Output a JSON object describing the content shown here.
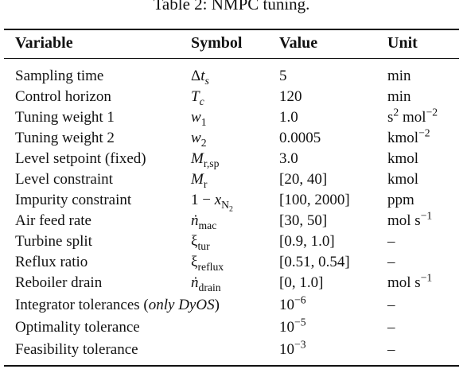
{
  "caption": "Table 2: NMPC tuning.",
  "headers": {
    "variable": "Variable",
    "symbol": "Symbol",
    "value": "Value",
    "unit": "Unit"
  },
  "rows": [
    {
      "variable": "Sampling time",
      "symbol": "Δt_s",
      "value": "5",
      "unit": "min"
    },
    {
      "variable": "Control horizon",
      "symbol": "T_c",
      "value": "120",
      "unit": "min"
    },
    {
      "variable": "Tuning weight 1",
      "symbol": "w_1",
      "value": "1.0",
      "unit": "s^2 mol^-2"
    },
    {
      "variable": "Tuning weight 2",
      "symbol": "w_2",
      "value": "0.0005",
      "unit": "kmol^-2"
    },
    {
      "variable": "Level setpoint (fixed)",
      "symbol": "M_r,sp",
      "value": "3.0",
      "unit": "kmol"
    },
    {
      "variable": "Level constraint",
      "symbol": "M_r",
      "value": "[20, 40]",
      "unit": "kmol"
    },
    {
      "variable": "Impurity constraint",
      "symbol": "1 − x_N2",
      "value": "[100, 2000]",
      "unit": "ppm"
    },
    {
      "variable": "Air feed rate",
      "symbol": "ṅ_mac",
      "value": "[30, 50]",
      "unit": "mol s^-1"
    },
    {
      "variable": "Turbine split",
      "symbol": "ξ_tur",
      "value": "[0.9, 1.0]",
      "unit": "–"
    },
    {
      "variable": "Reflux ratio",
      "symbol": "ξ_reflux",
      "value": "[0.51, 0.54]",
      "unit": "–"
    },
    {
      "variable": "Reboiler drain",
      "symbol": "ṅ_drain",
      "value": "[0, 1.0]",
      "unit": "mol s^-1"
    },
    {
      "variable": "Integrator tolerances (only DyOS)",
      "symbol": "",
      "value": "10^-6",
      "unit": "–"
    },
    {
      "variable": "Optimality tolerance",
      "symbol": "",
      "value": "10^-5",
      "unit": "–"
    },
    {
      "variable": "Feasibility tolerance",
      "symbol": "",
      "value": "10^-3",
      "unit": "–"
    }
  ],
  "text": {
    "unit_s2mol2": {
      "a": "s",
      "b": "2",
      "c": " mol",
      "d": "−2"
    },
    "unit_kmol2": {
      "a": "kmol",
      "b": "−2"
    },
    "unit_mols": {
      "a": "mol s",
      "b": "−1"
    },
    "sym_dts": {
      "a": "Δ",
      "b": "t",
      "c": "s"
    },
    "sym_tc": {
      "a": "T",
      "b": "c"
    },
    "sym_w1": {
      "a": "w",
      "b": "1"
    },
    "sym_w2": {
      "a": "w",
      "b": "2"
    },
    "sym_mrsp": {
      "a": "M",
      "b": "r,sp"
    },
    "sym_mr": {
      "a": "M",
      "b": "r"
    },
    "sym_imp": {
      "a": "1 − ",
      "b": "x",
      "c": "N",
      "d": "2"
    },
    "sym_nmac": {
      "a": "ṅ",
      "b": "mac"
    },
    "sym_xitur": {
      "a": "ξ",
      "b": "tur"
    },
    "sym_xiref": {
      "a": "ξ",
      "b": "reflux"
    },
    "sym_ndrain": {
      "a": "ṅ",
      "b": "drain"
    },
    "integ": {
      "a": "Integrator tolerances (",
      "b": "only DyOS",
      "c": ")"
    },
    "exp6": {
      "a": "10",
      "b": "−6"
    },
    "exp5": {
      "a": "10",
      "b": "−5"
    },
    "exp3": {
      "a": "10",
      "b": "−3"
    }
  }
}
